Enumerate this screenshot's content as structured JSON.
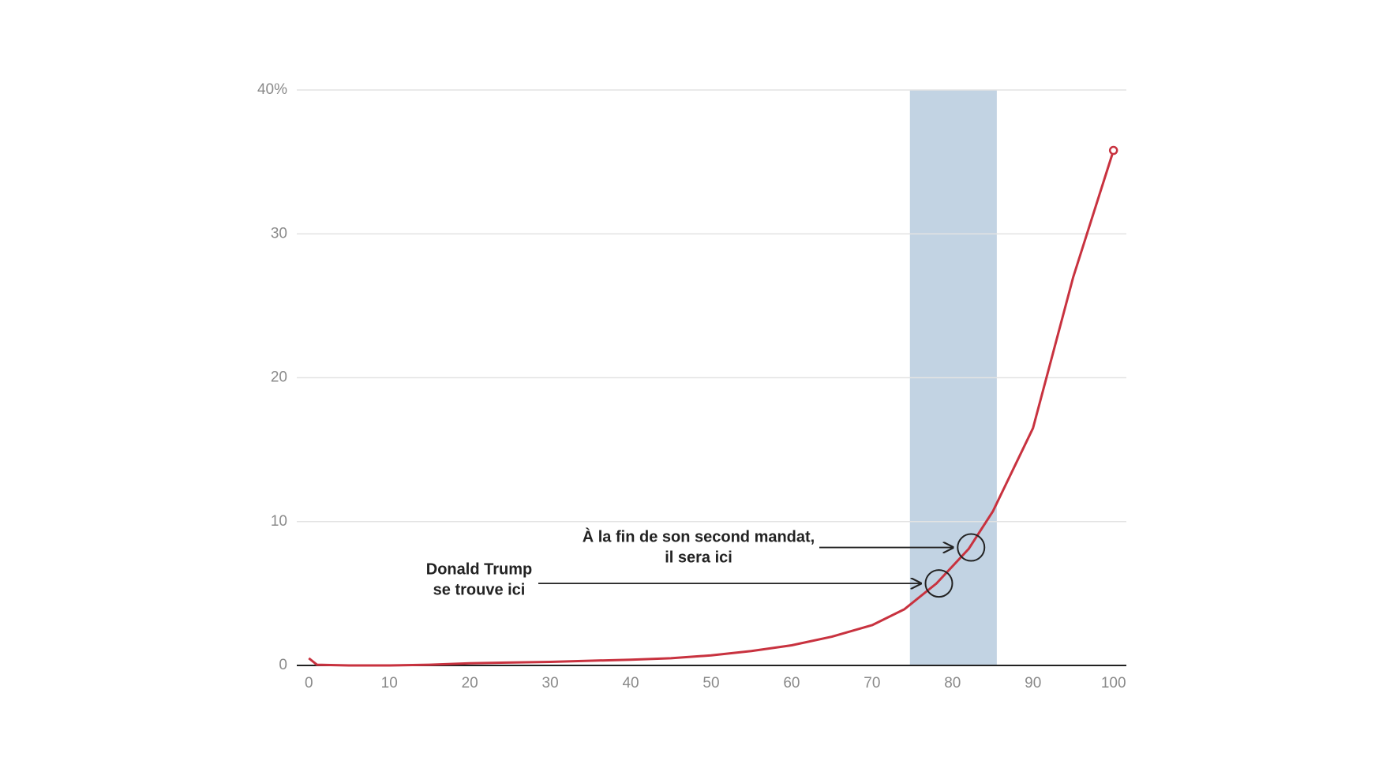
{
  "chart_data": {
    "type": "line",
    "x": [
      0,
      1,
      5,
      10,
      15,
      20,
      30,
      40,
      45,
      50,
      55,
      60,
      65,
      70,
      74,
      78,
      82,
      85,
      90,
      95,
      100
    ],
    "series": [
      {
        "color": "#c8323f",
        "values": [
          0.5,
          0.05,
          0,
          0,
          0.05,
          0.15,
          0.25,
          0.4,
          0.5,
          0.7,
          1.0,
          1.4,
          2.0,
          2.8,
          3.9,
          5.7,
          8.1,
          10.7,
          16.5,
          27,
          35.8
        ]
      }
    ],
    "band": [
      74.7,
      85.5
    ],
    "band_color": "#c2d3e3",
    "xlim": [
      -1.5,
      101.6
    ],
    "ylim": [
      0,
      40
    ],
    "xticks": [
      0,
      10,
      20,
      30,
      40,
      50,
      60,
      70,
      80,
      90,
      100
    ],
    "yticks": [
      0,
      10,
      20,
      30,
      {
        "value": 40,
        "label": "40%"
      }
    ],
    "grid": true,
    "annotations": [
      {
        "lines": [
          "À la fin de son second mandat,",
          "il sera ici"
        ],
        "x": 82.3,
        "y": 8.2
      },
      {
        "lines": [
          "Donald Trump",
          "se trouve ici"
        ],
        "x": 78.3,
        "y": 5.7
      }
    ]
  }
}
